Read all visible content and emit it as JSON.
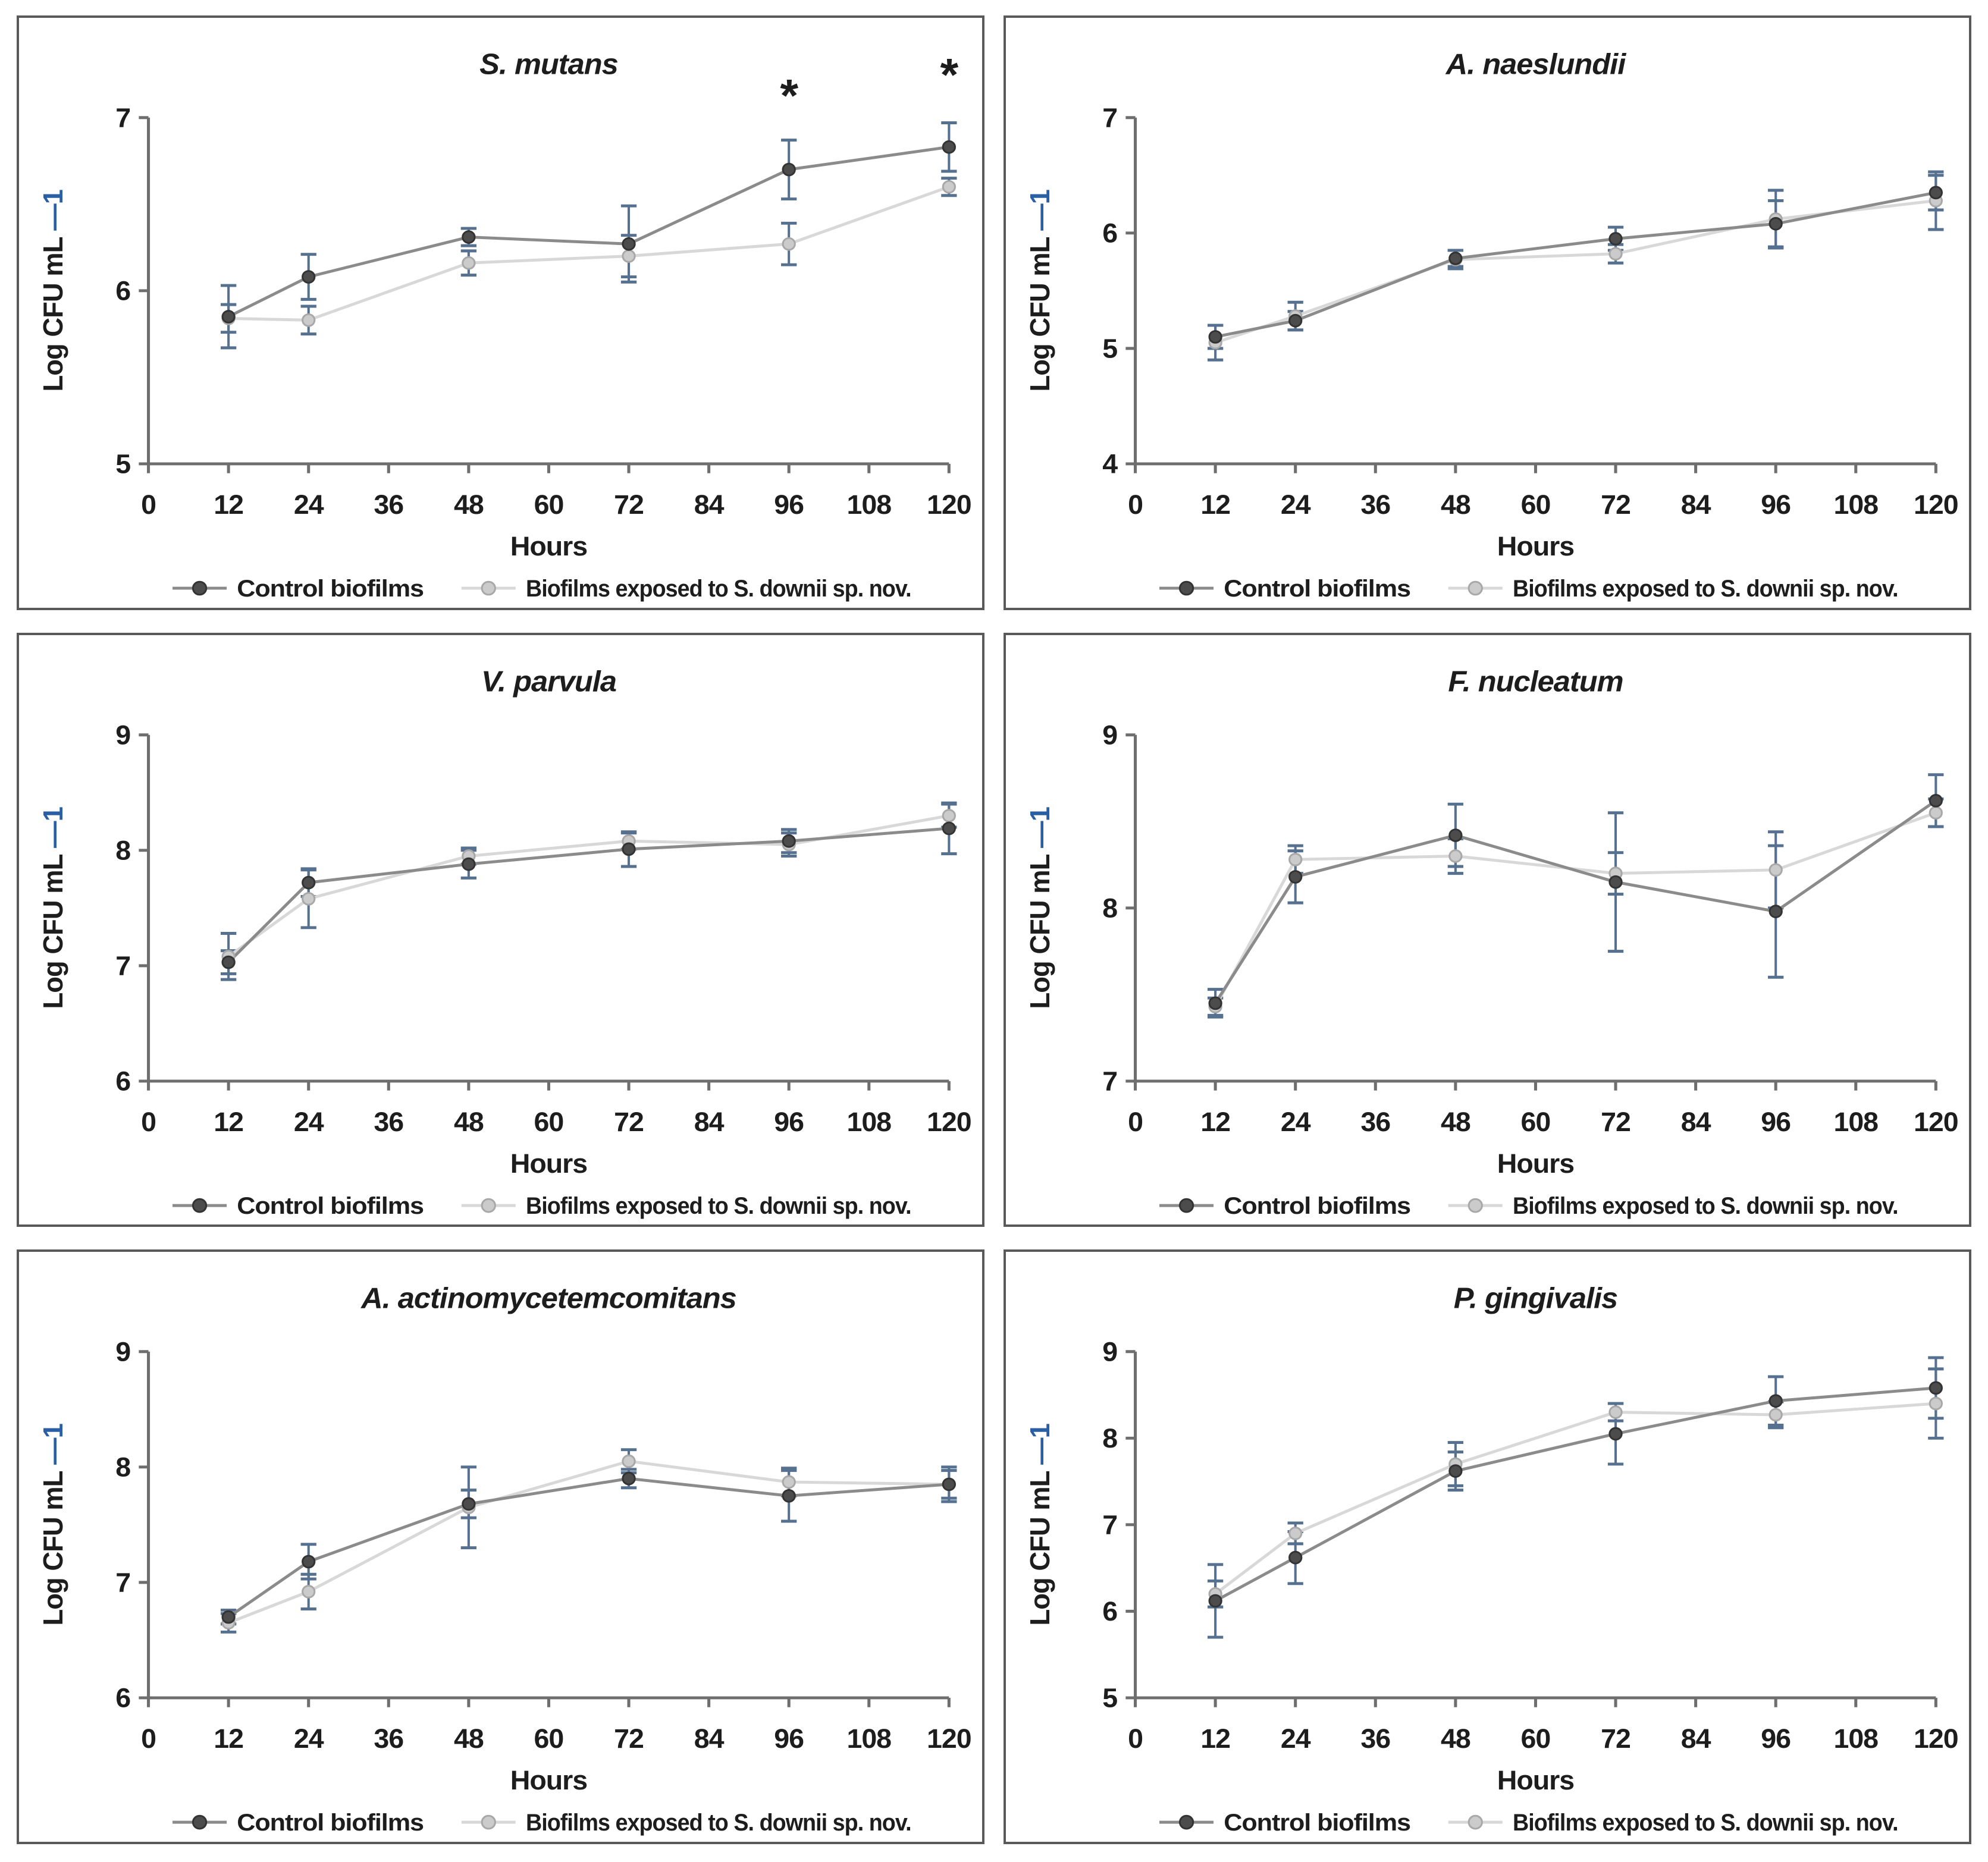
{
  "figure": {
    "background": "#ffffff",
    "panel_border_color": "#595959",
    "text_color": "#1d1d1d",
    "axis_color": "#6e6e6e",
    "error_bar_color": "#56718f",
    "superscript_color": "#2b5fa5"
  },
  "series_styles": {
    "control": {
      "line": "#8b8b8b",
      "marker_fill": "#4c4c4c",
      "marker_stroke": "#333333"
    },
    "exposed": {
      "line": "#d8d8d8",
      "marker_fill": "#cbcbcb",
      "marker_stroke": "#a8a8a8"
    }
  },
  "legend": {
    "control_label": "Control biofilms",
    "exposed_label": "Biofilms exposed to S. downii sp. nov."
  },
  "axis": {
    "xlabel": "Hours",
    "ylabel_main": "Log CFU mL ",
    "ylabel_sup": "—1",
    "x_ticks": [
      0,
      12,
      24,
      36,
      48,
      60,
      72,
      84,
      96,
      108,
      120
    ],
    "x_max": 120
  },
  "chart_data": [
    {
      "type": "line",
      "title": "S. mutans",
      "ylim": [
        5,
        7
      ],
      "yticks": [
        5,
        6,
        7
      ],
      "x": [
        12,
        24,
        48,
        72,
        96,
        120
      ],
      "series": [
        {
          "name": "Control biofilms",
          "style": "control",
          "values": [
            5.85,
            6.08,
            6.31,
            6.27,
            6.7,
            6.83
          ],
          "errors": [
            0.18,
            0.13,
            0.05,
            0.22,
            0.17,
            0.14
          ]
        },
        {
          "name": "Biofilms exposed to S. downii sp. nov.",
          "style": "exposed",
          "values": [
            5.84,
            5.83,
            6.16,
            6.2,
            6.27,
            6.6
          ],
          "errors": [
            0.08,
            0.08,
            0.07,
            0.12,
            0.12,
            0.05
          ]
        }
      ],
      "annotations": [
        {
          "x": 96,
          "y": 7.18,
          "text": "*"
        },
        {
          "x": 120,
          "y": 7.3,
          "text": "*"
        }
      ]
    },
    {
      "type": "line",
      "title": "A. naeslundii",
      "ylim": [
        4,
        7
      ],
      "yticks": [
        4,
        5,
        6,
        7
      ],
      "x": [
        12,
        24,
        48,
        72,
        96,
        120
      ],
      "series": [
        {
          "name": "Control biofilms",
          "style": "control",
          "values": [
            5.1,
            5.24,
            5.78,
            5.95,
            6.08,
            6.35
          ],
          "errors": [
            0.1,
            0.08,
            0.07,
            0.1,
            0.2,
            0.15
          ]
        },
        {
          "name": "Biofilms exposed to S. downii sp. nov.",
          "style": "exposed",
          "values": [
            5.05,
            5.28,
            5.77,
            5.82,
            6.12,
            6.28
          ],
          "errors": [
            0.15,
            0.12,
            0.08,
            0.08,
            0.25,
            0.25
          ]
        }
      ],
      "annotations": []
    },
    {
      "type": "line",
      "title": "V. parvula",
      "ylim": [
        6,
        9
      ],
      "yticks": [
        6,
        7,
        8,
        9
      ],
      "x": [
        12,
        24,
        48,
        72,
        96,
        120
      ],
      "series": [
        {
          "name": "Control biofilms",
          "style": "control",
          "values": [
            7.03,
            7.72,
            7.88,
            8.01,
            8.08,
            8.19
          ],
          "errors": [
            0.1,
            0.12,
            0.12,
            0.15,
            0.1,
            0.22
          ]
        },
        {
          "name": "Biofilms exposed to S. downii sp. nov.",
          "style": "exposed",
          "values": [
            7.08,
            7.58,
            7.95,
            8.08,
            8.05,
            8.3
          ],
          "errors": [
            0.2,
            0.25,
            0.07,
            0.07,
            0.1,
            0.1
          ]
        }
      ],
      "annotations": []
    },
    {
      "type": "line",
      "title": "F. nucleatum",
      "ylim": [
        7,
        9
      ],
      "yticks": [
        7,
        8,
        9
      ],
      "x": [
        12,
        24,
        48,
        72,
        96,
        120
      ],
      "series": [
        {
          "name": "Control biofilms",
          "style": "control",
          "values": [
            7.45,
            8.18,
            8.42,
            8.15,
            7.98,
            8.62
          ],
          "errors": [
            0.08,
            0.15,
            0.18,
            0.4,
            0.38,
            0.15
          ]
        },
        {
          "name": "Biofilms exposed to S. downii sp. nov.",
          "style": "exposed",
          "values": [
            7.43,
            8.28,
            8.3,
            8.2,
            8.22,
            8.55
          ],
          "errors": [
            0.05,
            0.08,
            0.1,
            0.12,
            0.22,
            0.08
          ]
        }
      ],
      "annotations": []
    },
    {
      "type": "line",
      "title": "A. actinomycetemcomitans",
      "ylim": [
        6,
        9
      ],
      "yticks": [
        6,
        7,
        8,
        9
      ],
      "x": [
        12,
        24,
        48,
        72,
        96,
        120
      ],
      "series": [
        {
          "name": "Control biofilms",
          "style": "control",
          "values": [
            6.7,
            7.18,
            7.68,
            7.9,
            7.75,
            7.85
          ],
          "errors": [
            0.06,
            0.15,
            0.12,
            0.08,
            0.22,
            0.12
          ]
        },
        {
          "name": "Biofilms exposed to S. downii sp. nov.",
          "style": "exposed",
          "values": [
            6.65,
            6.92,
            7.65,
            8.05,
            7.87,
            7.85
          ],
          "errors": [
            0.08,
            0.15,
            0.35,
            0.1,
            0.12,
            0.15
          ]
        }
      ],
      "annotations": []
    },
    {
      "type": "line",
      "title": "P. gingivalis",
      "ylim": [
        5,
        9
      ],
      "yticks": [
        5,
        6,
        7,
        8,
        9
      ],
      "x": [
        12,
        24,
        48,
        72,
        96,
        120
      ],
      "series": [
        {
          "name": "Control biofilms",
          "style": "control",
          "values": [
            6.12,
            6.62,
            7.62,
            8.05,
            8.43,
            8.58
          ],
          "errors": [
            0.42,
            0.3,
            0.22,
            0.35,
            0.28,
            0.35
          ]
        },
        {
          "name": "Biofilms exposed to S. downii sp. nov.",
          "style": "exposed",
          "values": [
            6.2,
            6.9,
            7.7,
            8.3,
            8.27,
            8.4
          ],
          "errors": [
            0.15,
            0.12,
            0.25,
            0.1,
            0.15,
            0.4
          ]
        }
      ],
      "annotations": []
    }
  ]
}
